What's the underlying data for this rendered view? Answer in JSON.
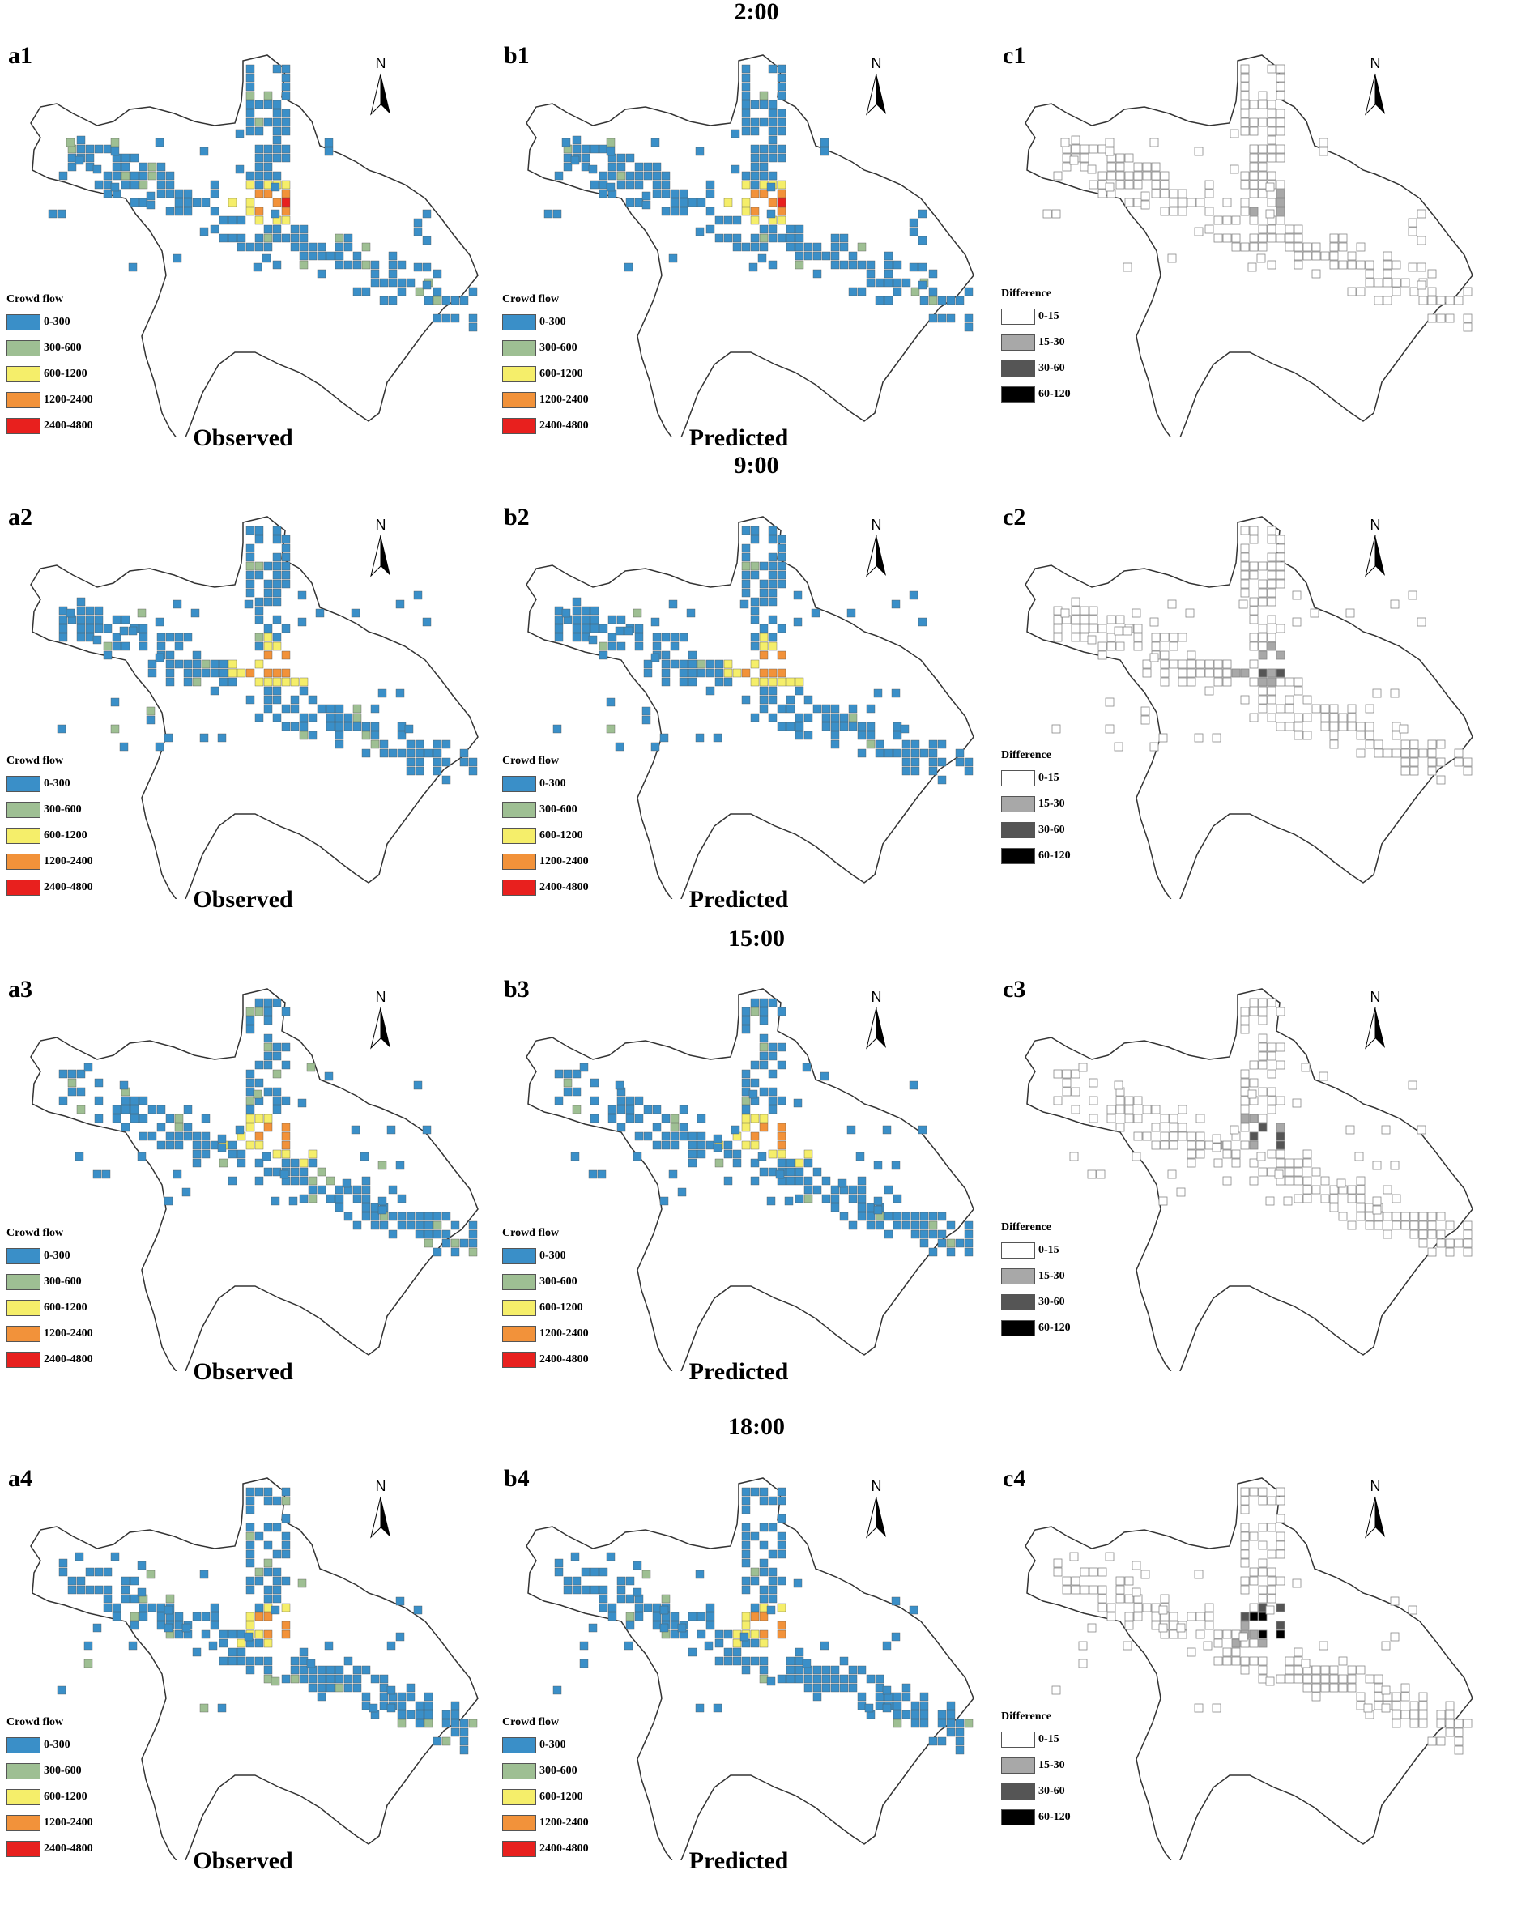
{
  "rows": [
    {
      "time": "2:00",
      "labels": [
        "a1",
        "b1",
        "c1"
      ]
    },
    {
      "time": "9:00",
      "labels": [
        "a2",
        "b2",
        "c2"
      ]
    },
    {
      "time": "15:00",
      "labels": [
        "a3",
        "b3",
        "c3"
      ]
    },
    {
      "time": "18:00",
      "labels": [
        "a4",
        "b4",
        "c4"
      ]
    }
  ],
  "captions": {
    "observed": "Observed",
    "predicted": "Predicted"
  },
  "north_label": "N",
  "legend_flow": {
    "title": "Crowd flow",
    "classes": [
      {
        "label": "0-300",
        "color": "#3a8fc8"
      },
      {
        "label": "300-600",
        "color": "#9ebf93"
      },
      {
        "label": "600-1200",
        "color": "#f5ee6a"
      },
      {
        "label": "1200-2400",
        "color": "#f2923a"
      },
      {
        "label": "2400-4800",
        "color": "#e8201e"
      }
    ]
  },
  "legend_diff": {
    "title": "Difference",
    "classes": [
      {
        "label": "0-15",
        "color": "#ffffff"
      },
      {
        "label": "15-30",
        "color": "#a8a8a8"
      },
      {
        "label": "30-60",
        "color": "#555555"
      },
      {
        "label": "60-120",
        "color": "#000000"
      }
    ]
  }
}
